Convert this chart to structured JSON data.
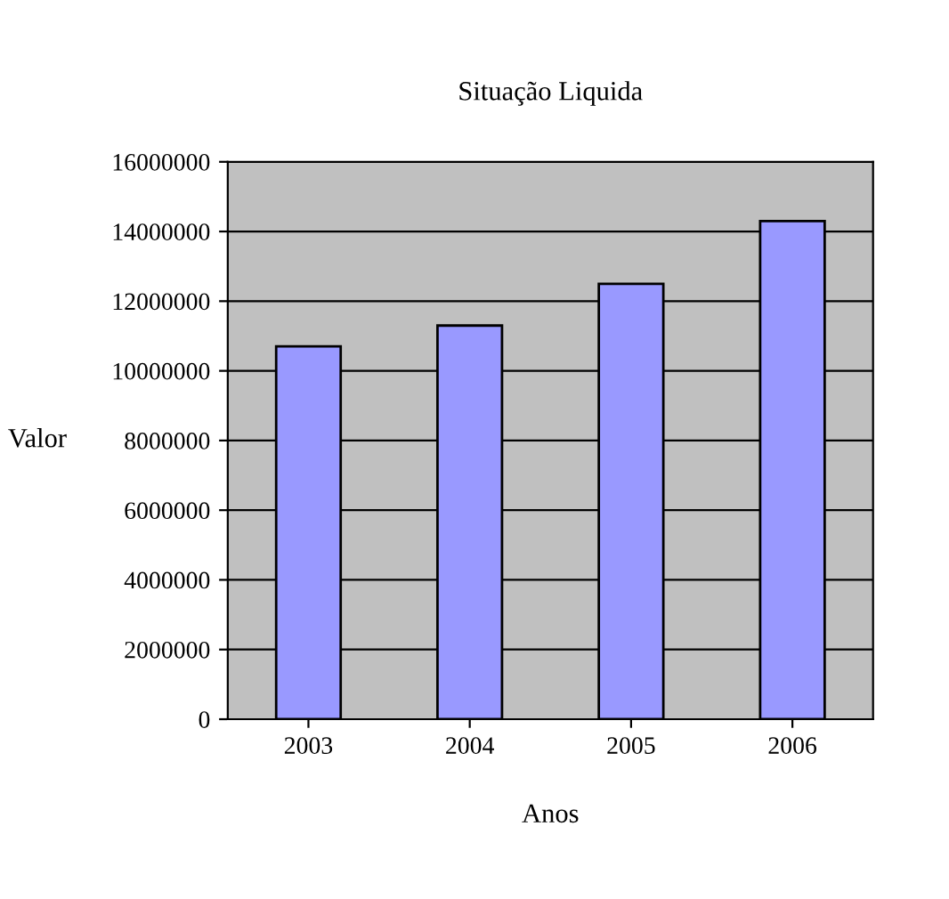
{
  "chart_data": {
    "type": "bar",
    "title": "Situação Liquida",
    "xlabel": "Anos",
    "ylabel": "Valor",
    "categories": [
      "2003",
      "2004",
      "2005",
      "2006"
    ],
    "values": [
      10700000,
      11300000,
      12500000,
      14300000
    ],
    "color": "#9999ff",
    "ylim": [
      0,
      16000000
    ],
    "yticks": [
      0,
      2000000,
      4000000,
      6000000,
      8000000,
      10000000,
      12000000,
      14000000,
      16000000
    ],
    "grid": "y",
    "legend": false
  }
}
